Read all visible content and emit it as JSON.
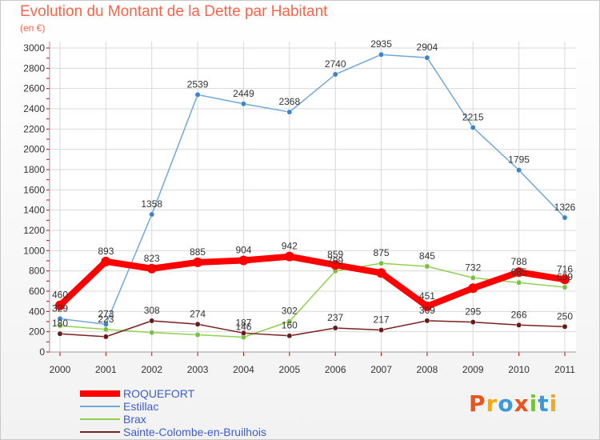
{
  "chart_data": {
    "type": "line",
    "title": "Evolution du Montant de la Dette par Habitant",
    "subtitle": "(en €)",
    "x": [
      "2000",
      "2001",
      "2002",
      "2003",
      "2004",
      "2005",
      "2006",
      "2007",
      "2008",
      "2009",
      "2010",
      "2011"
    ],
    "yticks": [
      "0",
      "200",
      "400",
      "600",
      "800",
      "1000",
      "1200",
      "1400",
      "1600",
      "1800",
      "2000",
      "2200",
      "2400",
      "2600",
      "2800",
      "3000"
    ],
    "ylim": [
      0,
      3000
    ],
    "grid": true,
    "legend_position": "bottom-left",
    "series": [
      {
        "name": "ROQUEFORT",
        "color": "#ff0000",
        "marker_color": "#ff0000",
        "values": [
          460,
          893,
          823,
          885,
          904,
          942,
          859,
          780,
          451,
          630,
          788,
          716
        ],
        "labels": [
          "460",
          "893",
          "823",
          "885",
          "904",
          "942",
          "859",
          "",
          "451",
          "",
          "788",
          "716"
        ]
      },
      {
        "name": "Estillac",
        "color": "#6fa8dc",
        "marker_color": "#3d85c6",
        "values": [
          329,
          273,
          1358,
          2539,
          2449,
          2368,
          2740,
          2935,
          2904,
          2215,
          1795,
          1326
        ],
        "labels": [
          "329",
          "273",
          "1358",
          "2539",
          "2449",
          "2368",
          "2740",
          "2935",
          "2904",
          "2215",
          "1795",
          "1326"
        ]
      },
      {
        "name": "Brax",
        "color": "#8fd14f",
        "marker_color": "#7ac143",
        "values": [
          260,
          223,
          192,
          170,
          146,
          302,
          799,
          875,
          845,
          732,
          685,
          639
        ],
        "labels": [
          "",
          "223",
          "",
          "",
          "146",
          "302",
          "799",
          "875",
          "845",
          "732",
          "685",
          "639"
        ]
      },
      {
        "name": "Sainte-Colombe-en-Bruilhois",
        "color": "#7b1f1f",
        "marker_color": "#6b1a1a",
        "values": [
          180,
          151,
          308,
          274,
          187,
          160,
          237,
          217,
          309,
          295,
          266,
          250
        ],
        "labels": [
          "180",
          "",
          "308",
          "274",
          "187",
          "160",
          "237",
          "217",
          "309",
          "295",
          "266",
          "250"
        ]
      }
    ]
  },
  "logo": {
    "text": "Proxiti",
    "colors": [
      "#e8541e",
      "#f0a81c",
      "#3b9ad9",
      "#e8541e",
      "#7ac143",
      "#3b9ad9",
      "#f0a81c"
    ]
  }
}
